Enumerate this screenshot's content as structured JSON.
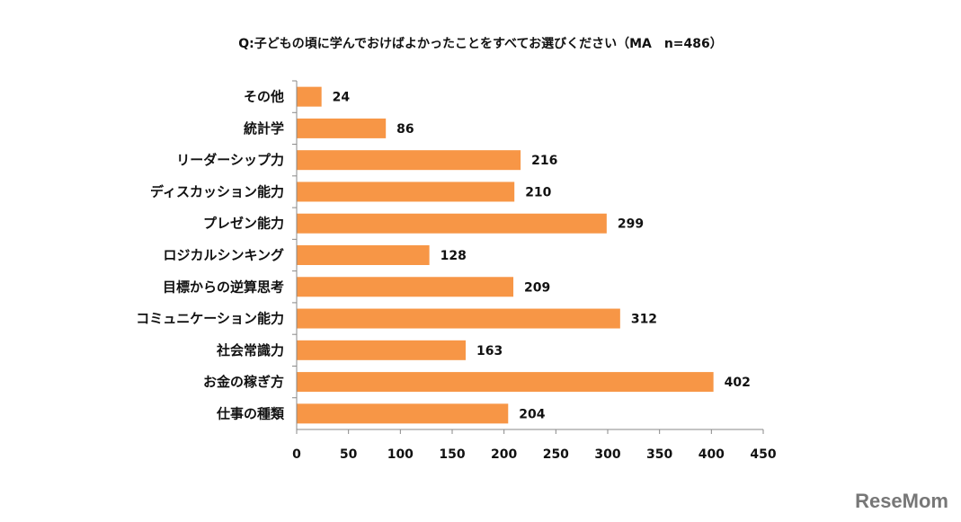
{
  "chart_data": {
    "type": "bar",
    "orientation": "horizontal",
    "title": "Q:子どもの頃に学んでおけばよかったことをすべてお選びください（MA　n=486）",
    "categories": [
      "その他",
      "統計学",
      "リーダーシップ力",
      "ディスカッション能力",
      "プレゼン能力",
      "ロジカルシンキング",
      "目標からの逆算思考",
      "コミュニケーション能力",
      "社会常識力",
      "お金の稼ぎ方",
      "仕事の種類"
    ],
    "values": [
      24,
      86,
      216,
      210,
      299,
      128,
      209,
      312,
      163,
      402,
      204
    ],
    "xlim": [
      0,
      450
    ],
    "xticks": [
      0,
      50,
      100,
      150,
      200,
      250,
      300,
      350,
      400,
      450
    ],
    "xlabel": "",
    "ylabel": "",
    "grid": false,
    "bar_color": "#F79646"
  },
  "watermark": "ReseMom"
}
